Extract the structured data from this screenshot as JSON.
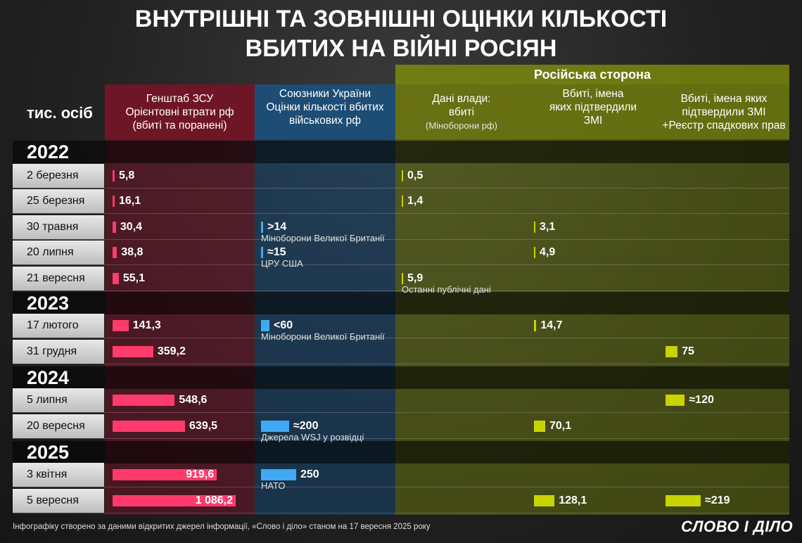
{
  "title_lines": [
    "ВНУТРІШНІ ТА ЗОВНІШНІ ОЦІНКИ КІЛЬКОСТІ",
    "ВБИТИХ НА ВІЙНІ РОСІЯН"
  ],
  "unit_label": "тис. осіб",
  "russian_side_label": "Російська сторона",
  "columns": [
    {
      "id": "zsu",
      "lines": [
        "Генштаб ЗСУ",
        "Орієнтовні втрати рф",
        "(вбиті та поранені)"
      ],
      "color": "#ff3b6b"
    },
    {
      "id": "allies",
      "lines": [
        "Союзники України",
        "Оцінки кількості вбитих",
        "військових рф"
      ],
      "color": "#3fa9f5"
    },
    {
      "id": "official",
      "lines": [
        "Дані влади:",
        "вбиті"
      ],
      "sub": "(Міноборони рф)",
      "color": "#c8d400"
    },
    {
      "id": "media",
      "lines": [
        "Вбиті, імена",
        "яких підтвердили",
        "ЗМІ"
      ],
      "color": "#c8d400"
    },
    {
      "id": "registry",
      "lines": [
        "Вбиті, імена яких",
        "підтвердили ЗМІ",
        "+Реєстр спадкових прав"
      ],
      "color": "#c8d400"
    }
  ],
  "years": [
    "2022",
    "2023",
    "2024",
    "2025"
  ],
  "chart_data": {
    "type": "table",
    "rows": [
      {
        "year": "2022",
        "date": "2 березня",
        "zsu": {
          "value": 5.8,
          "label": "5,8"
        },
        "official": {
          "value": 0.5,
          "label": "0,5"
        }
      },
      {
        "year": "2022",
        "date": "25 березня",
        "zsu": {
          "value": 16.1,
          "label": "16,1"
        },
        "official": {
          "value": 1.4,
          "label": "1,4"
        }
      },
      {
        "year": "2022",
        "date": "30 травня",
        "zsu": {
          "value": 30.4,
          "label": "30,4"
        },
        "allies": {
          "value": 14,
          "label": ">14",
          "note": "Міноборони Великої Британії"
        },
        "media": {
          "value": 3.1,
          "label": "3,1"
        }
      },
      {
        "year": "2022",
        "date": "20 липня",
        "zsu": {
          "value": 38.8,
          "label": "38,8"
        },
        "allies": {
          "value": 15,
          "label": "≈15",
          "note": "ЦРУ США"
        },
        "media": {
          "value": 4.9,
          "label": "4,9"
        }
      },
      {
        "year": "2022",
        "date": "21 вересня",
        "zsu": {
          "value": 55.1,
          "label": "55,1"
        },
        "official": {
          "value": 5.9,
          "label": "5,9",
          "note": "Останні публічні дані"
        }
      },
      {
        "year": "2023",
        "date": "17 лютого",
        "zsu": {
          "value": 141.3,
          "label": "141,3"
        },
        "allies": {
          "value": 60,
          "label": "<60",
          "note": "Міноборони Великої Британії"
        },
        "media": {
          "value": 14.7,
          "label": "14,7"
        }
      },
      {
        "year": "2023",
        "date": "31 грудня",
        "zsu": {
          "value": 359.2,
          "label": "359,2"
        },
        "registry": {
          "value": 75,
          "label": "75"
        }
      },
      {
        "year": "2024",
        "date": "5 липня",
        "zsu": {
          "value": 548.6,
          "label": "548,6"
        },
        "registry": {
          "value": 120,
          "label": "≈120"
        }
      },
      {
        "year": "2024",
        "date": "20 вересня",
        "zsu": {
          "value": 639.5,
          "label": "639,5"
        },
        "allies": {
          "value": 200,
          "label": "≈200",
          "note": "Джерела WSJ у розвідці"
        },
        "media": {
          "value": 70.1,
          "label": "70,1"
        }
      },
      {
        "year": "2025",
        "date": "3 квітня",
        "zsu": {
          "value": 919.6,
          "label": "919,6"
        },
        "allies": {
          "value": 250,
          "label": "250",
          "note": "НАТО"
        }
      },
      {
        "year": "2025",
        "date": "5 вересня",
        "zsu": {
          "value": 1086.2,
          "label": "1 086,2"
        },
        "media": {
          "value": 128.1,
          "label": "128,1"
        },
        "registry": {
          "value": 219,
          "label": "≈219"
        }
      }
    ]
  },
  "footer": "Інфографіку створено за даними відкритих джерел інформації, «Слово і діло» станом на 17 вересня 2025 року",
  "logo": "СЛОВО І ДІЛО"
}
